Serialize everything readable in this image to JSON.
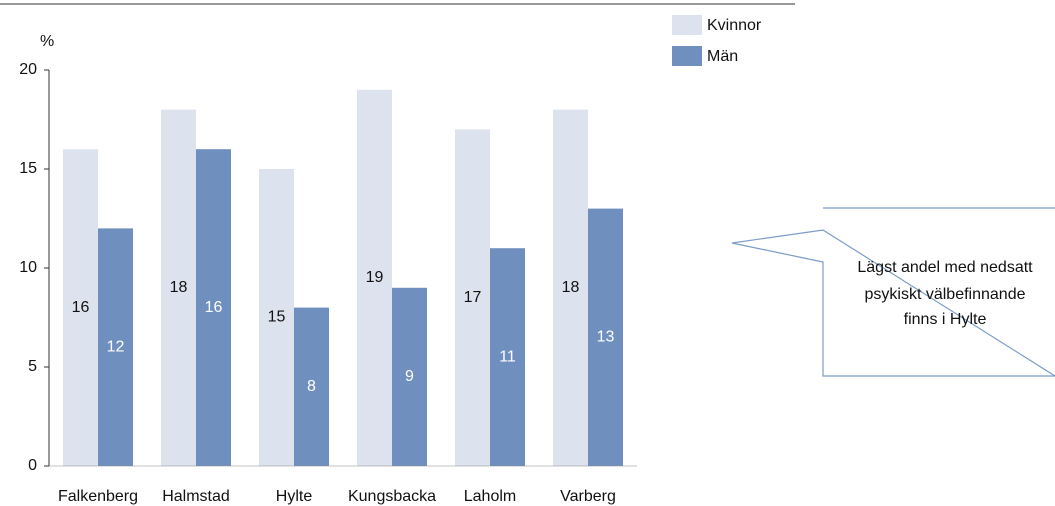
{
  "chart_data": {
    "type": "bar",
    "ylabel": "%",
    "categories": [
      "Falkenberg",
      "Halmstad",
      "Hylte",
      "Kungsbacka",
      "Laholm",
      "Varberg"
    ],
    "series": [
      {
        "name": "Kvinnor",
        "color": "#dde3ee",
        "values": [
          16,
          18,
          15,
          19,
          17,
          18
        ]
      },
      {
        "name": "Män",
        "color": "#6f8fbe",
        "values": [
          12,
          16,
          8,
          9,
          11,
          13
        ]
      }
    ],
    "ylim": [
      0,
      20
    ],
    "yticks": [
      0,
      5,
      10,
      15,
      20
    ],
    "grid": false,
    "legend": "top-right",
    "annotation": [
      "Lägst andel med nedsatt",
      "psykiskt välbefinnande",
      "finns i Hylte"
    ]
  }
}
